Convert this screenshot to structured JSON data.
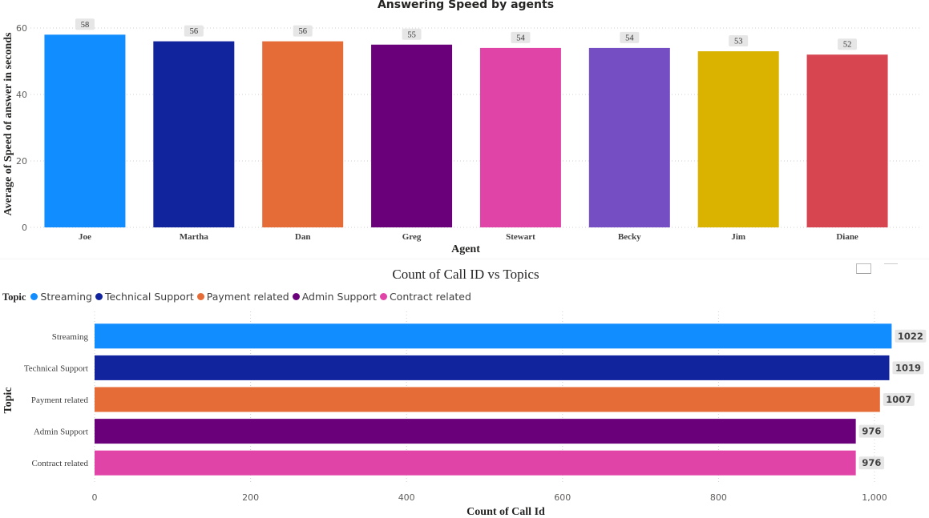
{
  "chart_data": [
    {
      "type": "bar",
      "title": "Answering Speed by agents",
      "xlabel": "Agent",
      "ylabel": "Average of Speed of answer in seconds",
      "categories": [
        "Joe",
        "Martha",
        "Dan",
        "Greg",
        "Stewart",
        "Becky",
        "Jim",
        "Diane"
      ],
      "values": [
        58,
        56,
        56,
        55,
        54,
        54,
        53,
        52
      ],
      "data_labels": [
        "58",
        "56",
        "56",
        "55",
        "54",
        "54",
        "53",
        "52"
      ],
      "colors": [
        "#118DFF",
        "#12239E",
        "#E66C37",
        "#6B007B",
        "#E044A7",
        "#744EC2",
        "#D9B300",
        "#D64550"
      ],
      "ylim": [
        0,
        60
      ],
      "yticks": [
        "0",
        "20",
        "40",
        "60"
      ],
      "grid": true
    },
    {
      "type": "bar",
      "orientation": "horizontal",
      "title": "Count of Call ID vs Topics",
      "xlabel": "Count of Call Id",
      "ylabel": "Topic",
      "legend_title": "Topic",
      "legend_position": "top-left",
      "categories": [
        "Streaming",
        "Technical Support",
        "Payment related",
        "Admin Support",
        "Contract related"
      ],
      "values": [
        1022,
        1019,
        1007,
        976,
        976
      ],
      "data_labels": [
        "1022",
        "1019",
        "1007",
        "976",
        "976"
      ],
      "colors": [
        "#118DFF",
        "#12239E",
        "#E66C37",
        "#6B007B",
        "#E044A7"
      ],
      "xlim": [
        0,
        1000
      ],
      "xticks": [
        "0",
        "200",
        "400",
        "600",
        "800",
        "1,000"
      ],
      "grid": true
    }
  ]
}
